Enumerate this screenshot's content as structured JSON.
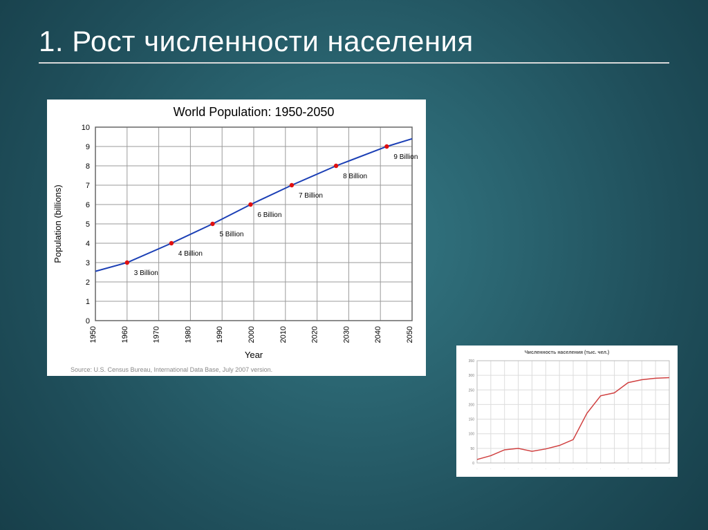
{
  "slide": {
    "title": "1. Рост численности населения",
    "background_center": "#347884",
    "background_edge": "#173f4a",
    "title_color": "#ffffff",
    "title_fontsize": 42,
    "underline_color": "#d9d9d9"
  },
  "chart_main": {
    "type": "line",
    "title": "World Population: 1950-2050",
    "title_fontsize": 18,
    "xlabel": "Year",
    "ylabel": "Population (billions)",
    "label_fontsize": 13,
    "tick_fontsize": 11,
    "background_color": "#ffffff",
    "grid_color": "#9a9a9a",
    "border_color": "#666666",
    "line_color": "#1b3fb5",
    "marker_color": "#e01010",
    "annotation_color": "#000000",
    "annotation_fontsize": 10,
    "xlim": [
      1950,
      2050
    ],
    "ylim": [
      0,
      10
    ],
    "xticks": [
      1950,
      1960,
      1970,
      1980,
      1990,
      2000,
      2010,
      2020,
      2030,
      2040,
      2050
    ],
    "yticks": [
      0,
      1,
      2,
      3,
      4,
      5,
      6,
      7,
      8,
      9,
      10
    ],
    "line_points": [
      {
        "x": 1950,
        "y": 2.55
      },
      {
        "x": 1960,
        "y": 3.0
      },
      {
        "x": 1974,
        "y": 4.0
      },
      {
        "x": 1987,
        "y": 5.0
      },
      {
        "x": 1999,
        "y": 6.0
      },
      {
        "x": 2012,
        "y": 7.0
      },
      {
        "x": 2026,
        "y": 8.0
      },
      {
        "x": 2042,
        "y": 9.0
      },
      {
        "x": 2050,
        "y": 9.4
      }
    ],
    "markers": [
      {
        "x": 1960,
        "y": 3.0,
        "label": "3 Billion"
      },
      {
        "x": 1974,
        "y": 4.0,
        "label": "4 Billion"
      },
      {
        "x": 1987,
        "y": 5.0,
        "label": "5 Billion"
      },
      {
        "x": 1999,
        "y": 6.0,
        "label": "6 Billion"
      },
      {
        "x": 2012,
        "y": 7.0,
        "label": "7 Billion"
      },
      {
        "x": 2026,
        "y": 8.0,
        "label": "8 Billion"
      },
      {
        "x": 2042,
        "y": 9.0,
        "label": "9 Billion"
      }
    ],
    "line_width": 2,
    "marker_radius": 3.2,
    "source_note": "Source: U.S. Census Bureau, International Data Base, July 2007 version."
  },
  "chart_small": {
    "type": "line",
    "title": "Численность населения (тыс. чел.)",
    "title_fontsize": 7,
    "background_color": "#ffffff",
    "grid_color": "#dcdcdc",
    "border_color": "#bbbbbb",
    "line_color": "#d04040",
    "tick_fontsize": 5,
    "xlim": [
      0,
      14
    ],
    "ylim": [
      0,
      350
    ],
    "yticks": [
      0,
      50,
      100,
      150,
      200,
      250,
      300,
      350
    ],
    "xticks_count": 15,
    "points": [
      {
        "x": 0,
        "y": 12
      },
      {
        "x": 1,
        "y": 25
      },
      {
        "x": 2,
        "y": 45
      },
      {
        "x": 3,
        "y": 50
      },
      {
        "x": 4,
        "y": 40
      },
      {
        "x": 5,
        "y": 48
      },
      {
        "x": 6,
        "y": 60
      },
      {
        "x": 7,
        "y": 80
      },
      {
        "x": 8,
        "y": 170
      },
      {
        "x": 9,
        "y": 230
      },
      {
        "x": 10,
        "y": 240
      },
      {
        "x": 11,
        "y": 275
      },
      {
        "x": 12,
        "y": 285
      },
      {
        "x": 13,
        "y": 290
      },
      {
        "x": 14,
        "y": 292
      }
    ],
    "line_width": 1.5
  }
}
